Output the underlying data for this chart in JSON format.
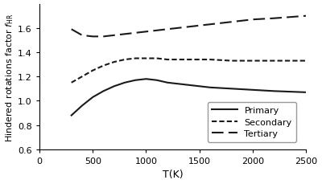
{
  "T": [
    300,
    400,
    500,
    600,
    700,
    800,
    900,
    1000,
    1100,
    1200,
    1400,
    1600,
    1800,
    2000,
    2200,
    2500
  ],
  "primary": [
    0.88,
    0.96,
    1.03,
    1.08,
    1.12,
    1.15,
    1.17,
    1.18,
    1.17,
    1.15,
    1.13,
    1.11,
    1.1,
    1.09,
    1.08,
    1.07
  ],
  "secondary": [
    1.15,
    1.2,
    1.25,
    1.29,
    1.32,
    1.34,
    1.35,
    1.35,
    1.35,
    1.34,
    1.34,
    1.34,
    1.33,
    1.33,
    1.33,
    1.33
  ],
  "tertiary": [
    1.59,
    1.54,
    1.53,
    1.53,
    1.54,
    1.55,
    1.56,
    1.57,
    1.58,
    1.59,
    1.61,
    1.63,
    1.65,
    1.67,
    1.68,
    1.7
  ],
  "xlim": [
    0,
    2500
  ],
  "ylim": [
    0.6,
    1.8
  ],
  "xlabel": "T(K)",
  "yticks": [
    0.6,
    0.8,
    1.0,
    1.2,
    1.4,
    1.6
  ],
  "xticks": [
    0,
    500,
    1000,
    1500,
    2000,
    2500
  ],
  "legend_primary": "Primary",
  "legend_secondary": "Secondary",
  "legend_tertiary": "Tertiary",
  "background_color": "#ffffff",
  "line_color": "#1a1a1a",
  "figwidth": 4.0,
  "figheight": 2.3,
  "dpi": 100
}
